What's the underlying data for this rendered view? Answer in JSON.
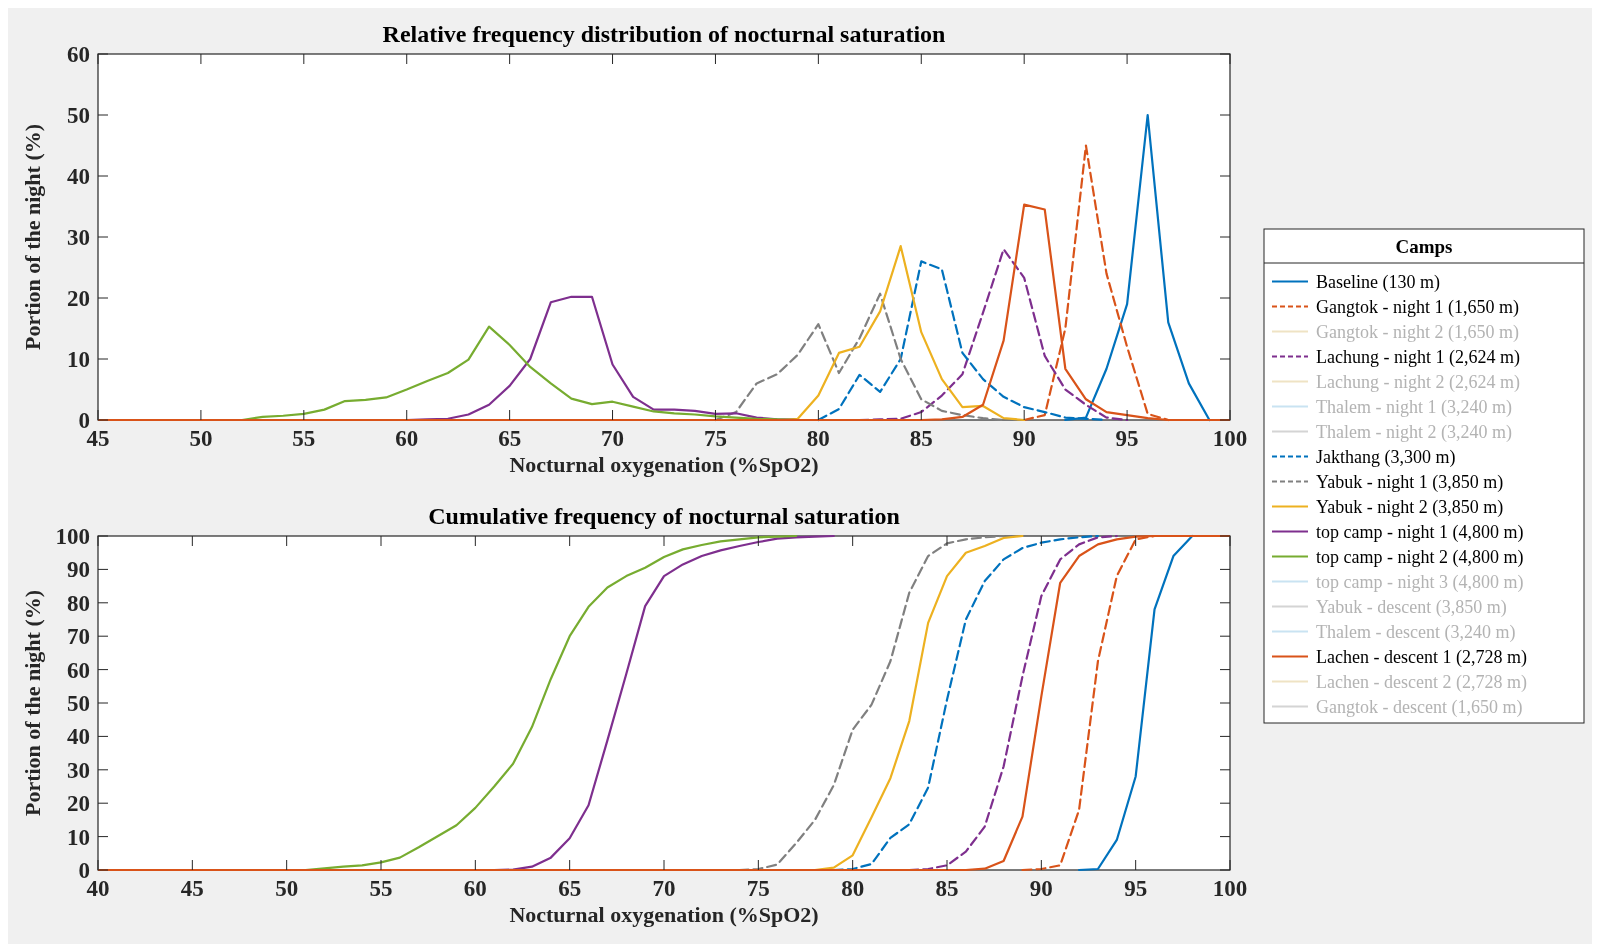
{
  "chart_data": [
    {
      "type": "line",
      "title": "Relative frequency distribution of nocturnal saturation",
      "xlabel": "Nocturnal oxygenation (%SpO2)",
      "ylabel": "Portion of the night (%)",
      "xlim": [
        45,
        100
      ],
      "ylim": [
        0,
        60
      ],
      "xticks": [
        45,
        50,
        55,
        60,
        65,
        70,
        75,
        80,
        85,
        90,
        95,
        100
      ],
      "yticks": [
        0,
        10,
        20,
        30,
        40,
        50,
        60
      ],
      "grid": false,
      "x": [
        45,
        46,
        47,
        48,
        49,
        50,
        51,
        52,
        53,
        54,
        55,
        56,
        57,
        58,
        59,
        60,
        61,
        62,
        63,
        64,
        65,
        66,
        67,
        68,
        69,
        70,
        71,
        72,
        73,
        74,
        75,
        76,
        77,
        78,
        79,
        80,
        81,
        82,
        83,
        84,
        85,
        86,
        87,
        88,
        89,
        90,
        91,
        92,
        93,
        94,
        95,
        96,
        97,
        98,
        99,
        100
      ],
      "series": [
        {
          "color": "#0072bd",
          "line_style": "solid",
          "values": [
            null,
            null,
            null,
            null,
            null,
            null,
            null,
            null,
            null,
            null,
            null,
            null,
            null,
            null,
            null,
            null,
            null,
            null,
            null,
            null,
            null,
            null,
            null,
            null,
            null,
            null,
            null,
            null,
            null,
            null,
            null,
            null,
            null,
            null,
            null,
            null,
            null,
            null,
            null,
            null,
            null,
            null,
            null,
            null,
            null,
            null,
            null,
            0,
            0.4,
            8.4,
            19,
            50,
            16,
            6,
            0,
            null
          ]
        },
        {
          "color": "#d95319",
          "line_style": "dashed",
          "values": [
            null,
            null,
            null,
            null,
            null,
            null,
            null,
            null,
            null,
            null,
            null,
            null,
            null,
            null,
            null,
            null,
            null,
            null,
            null,
            null,
            null,
            null,
            null,
            null,
            null,
            null,
            null,
            null,
            null,
            null,
            null,
            null,
            null,
            null,
            null,
            null,
            null,
            null,
            null,
            null,
            null,
            null,
            null,
            null,
            null,
            0,
            0.8,
            15,
            45,
            24,
            12,
            1,
            0,
            null,
            null,
            null
          ]
        },
        {
          "color": "#7e2f8e",
          "line_style": "dashed",
          "values": [
            null,
            null,
            null,
            null,
            null,
            null,
            null,
            null,
            null,
            null,
            null,
            null,
            null,
            null,
            null,
            null,
            null,
            null,
            null,
            null,
            null,
            null,
            null,
            null,
            null,
            null,
            null,
            null,
            null,
            null,
            null,
            null,
            null,
            null,
            null,
            null,
            null,
            0,
            0.1,
            0.2,
            1.3,
            4,
            7.5,
            17.6,
            28,
            23.3,
            10.5,
            5,
            2.5,
            0.4,
            0,
            null,
            null,
            null,
            null,
            null
          ]
        },
        {
          "color": "#0072bd",
          "line_style": "dashed",
          "values": [
            null,
            null,
            null,
            null,
            null,
            null,
            null,
            null,
            null,
            null,
            null,
            null,
            null,
            null,
            null,
            null,
            null,
            null,
            null,
            null,
            null,
            null,
            null,
            null,
            null,
            null,
            null,
            null,
            null,
            null,
            null,
            null,
            null,
            null,
            null,
            0,
            1.8,
            7.4,
            4.6,
            10,
            26,
            24.7,
            11,
            6.7,
            3.8,
            2.1,
            1.3,
            0.4,
            0.2,
            0,
            null,
            null,
            null,
            null,
            null,
            null
          ]
        },
        {
          "color": "#808080",
          "line_style": "dashed",
          "values": [
            null,
            null,
            null,
            null,
            null,
            null,
            null,
            null,
            null,
            null,
            null,
            null,
            null,
            null,
            null,
            null,
            null,
            null,
            null,
            null,
            null,
            null,
            null,
            null,
            null,
            null,
            null,
            null,
            null,
            null,
            0,
            1.3,
            6,
            7.5,
            10.7,
            15.7,
            7.7,
            13.4,
            20.7,
            10,
            3.4,
            1.5,
            0.8,
            0.3,
            0,
            null,
            null,
            null,
            null,
            null,
            null,
            null,
            null,
            null,
            null,
            null
          ]
        },
        {
          "color": "#edb120",
          "line_style": "solid",
          "values": [
            null,
            null,
            null,
            null,
            null,
            null,
            null,
            null,
            null,
            null,
            null,
            null,
            null,
            null,
            null,
            null,
            null,
            null,
            null,
            null,
            null,
            null,
            null,
            null,
            null,
            null,
            null,
            null,
            null,
            null,
            null,
            null,
            null,
            0,
            0.2,
            4,
            11,
            12,
            17.8,
            28.5,
            14.4,
            6.7,
            2.1,
            2.3,
            0.3,
            0,
            null,
            null,
            null,
            null,
            null,
            null,
            null,
            null,
            null,
            null
          ]
        },
        {
          "color": "#7e2f8e",
          "line_style": "solid",
          "values": [
            null,
            null,
            null,
            null,
            null,
            null,
            null,
            null,
            null,
            null,
            null,
            null,
            null,
            null,
            null,
            0,
            0.1,
            0.2,
            0.9,
            2.5,
            5.6,
            10,
            19.3,
            20.2,
            20.2,
            9.1,
            3.8,
            1.7,
            1.7,
            1.5,
            1,
            1.1,
            0.4,
            0.1,
            0,
            null,
            null,
            null,
            null,
            null,
            null,
            null,
            null,
            null,
            null,
            null,
            null,
            null,
            null,
            null,
            null,
            null,
            null,
            null,
            null,
            null
          ]
        },
        {
          "color": "#77ac30",
          "line_style": "solid",
          "values": [
            null,
            null,
            null,
            null,
            null,
            null,
            null,
            0,
            0.5,
            0.7,
            1,
            1.7,
            3.1,
            3.3,
            3.7,
            5,
            6.4,
            7.7,
            9.9,
            15.3,
            12.3,
            8.7,
            6,
            3.5,
            2.6,
            3,
            2.2,
            1.4,
            1.1,
            0.9,
            0.6,
            0.4,
            0.2,
            0.1,
            0,
            null,
            null,
            null,
            null,
            null,
            null,
            null,
            null,
            null,
            null,
            null,
            null,
            null,
            null,
            null,
            null,
            null,
            null,
            null,
            null,
            null
          ]
        },
        {
          "color": "#d95319",
          "line_style": "solid",
          "values": [
            0,
            0,
            0,
            0,
            0,
            0,
            0,
            0,
            0,
            0,
            0,
            0,
            0,
            0,
            0,
            0,
            0,
            0,
            0,
            0,
            0,
            0,
            0,
            0,
            0,
            0,
            0,
            0,
            0,
            0,
            0,
            0,
            0,
            0,
            0,
            0,
            0,
            0,
            0,
            0,
            0,
            0.1,
            0.5,
            2.5,
            13,
            35.3,
            34.5,
            8.4,
            3.4,
            1.3,
            0.8,
            0.3,
            0,
            0,
            0,
            0
          ]
        }
      ]
    },
    {
      "type": "line",
      "title": "Cumulative frequency of nocturnal saturation",
      "xlabel": "Nocturnal oxygenation (%SpO2)",
      "ylabel": "Portion of the night (%)",
      "xlim": [
        40,
        100
      ],
      "ylim": [
        0,
        100
      ],
      "xticks": [
        40,
        45,
        50,
        55,
        60,
        65,
        70,
        75,
        80,
        85,
        90,
        95,
        100
      ],
      "yticks": [
        0,
        10,
        20,
        30,
        40,
        50,
        60,
        70,
        80,
        90,
        100
      ],
      "grid": false,
      "legend": "right",
      "legend_title": "Camps",
      "x": [
        40,
        41,
        42,
        43,
        44,
        45,
        46,
        47,
        48,
        49,
        50,
        51,
        52,
        53,
        54,
        55,
        56,
        57,
        58,
        59,
        60,
        61,
        62,
        63,
        64,
        65,
        66,
        67,
        68,
        69,
        70,
        71,
        72,
        73,
        74,
        75,
        76,
        77,
        78,
        79,
        80,
        81,
        82,
        83,
        84,
        85,
        86,
        87,
        88,
        89,
        90,
        91,
        92,
        93,
        94,
        95,
        96,
        97,
        98,
        99,
        100
      ],
      "series": [
        {
          "name": "Baseline (130 m)",
          "color": "#0072bd",
          "line_style": "solid",
          "values": [
            null,
            null,
            null,
            null,
            null,
            null,
            null,
            null,
            null,
            null,
            null,
            null,
            null,
            null,
            null,
            null,
            null,
            null,
            null,
            null,
            null,
            null,
            null,
            null,
            null,
            null,
            null,
            null,
            null,
            null,
            null,
            null,
            null,
            null,
            null,
            null,
            null,
            null,
            null,
            null,
            null,
            null,
            null,
            null,
            null,
            null,
            null,
            null,
            null,
            null,
            null,
            null,
            0,
            0.3,
            9,
            28,
            78,
            94,
            100,
            null,
            null
          ]
        },
        {
          "name": "Gangtok - night 1 (1,650 m)",
          "color": "#d95319",
          "line_style": "dashed",
          "values": [
            null,
            null,
            null,
            null,
            null,
            null,
            null,
            null,
            null,
            null,
            null,
            null,
            null,
            null,
            null,
            null,
            null,
            null,
            null,
            null,
            null,
            null,
            null,
            null,
            null,
            null,
            null,
            null,
            null,
            null,
            null,
            null,
            null,
            null,
            null,
            null,
            null,
            null,
            null,
            null,
            null,
            null,
            null,
            null,
            null,
            null,
            null,
            null,
            null,
            0,
            0.3,
            1.4,
            18,
            62.5,
            88,
            99,
            100,
            null,
            null,
            null,
            null
          ]
        },
        {
          "name": "Gangtok - night 2 (1,650 m)",
          "color": "#efe3c4",
          "line_style": "solid",
          "values": [
            null,
            null,
            null,
            null,
            null,
            null,
            null,
            null,
            null,
            null,
            null,
            null,
            null,
            null,
            null,
            null,
            null,
            null,
            null,
            null,
            null,
            null,
            null,
            null,
            null,
            null,
            null,
            null,
            null,
            null,
            null,
            null,
            null,
            null,
            null,
            null,
            null,
            null,
            null,
            null,
            null,
            null,
            null,
            null,
            null,
            null,
            null,
            null,
            null,
            null,
            null,
            null,
            null,
            null,
            null,
            null,
            null,
            null,
            null,
            null,
            null
          ]
        },
        {
          "name": "Lachung - night 1 (2,624 m)",
          "color": "#7e2f8e",
          "line_style": "dashed",
          "values": [
            null,
            null,
            null,
            null,
            null,
            null,
            null,
            null,
            null,
            null,
            null,
            null,
            null,
            null,
            null,
            null,
            null,
            null,
            null,
            null,
            null,
            null,
            null,
            null,
            null,
            null,
            null,
            null,
            null,
            null,
            null,
            null,
            null,
            null,
            null,
            null,
            null,
            null,
            null,
            null,
            null,
            null,
            null,
            0,
            0.3,
            1.4,
            5.5,
            13,
            31,
            58,
            82,
            93,
            97.5,
            99.6,
            100,
            null,
            null,
            null,
            null,
            null,
            null
          ]
        },
        {
          "name": "Lachung - night 2 (2,624 m)",
          "color": "#efe3c4",
          "line_style": "solid",
          "values": [
            null,
            null,
            null,
            null,
            null,
            null,
            null,
            null,
            null,
            null,
            null,
            null,
            null,
            null,
            null,
            null,
            null,
            null,
            null,
            null,
            null,
            null,
            null,
            null,
            null,
            null,
            null,
            null,
            null,
            null,
            null,
            null,
            null,
            null,
            null,
            null,
            null,
            null,
            null,
            null,
            null,
            null,
            null,
            null,
            null,
            null,
            null,
            null,
            null,
            null,
            null,
            null,
            null,
            null,
            null,
            null,
            null,
            null,
            null,
            null,
            null
          ]
        },
        {
          "name": "Thalem - night 1 (3,240 m)",
          "color": "#c9e3f2",
          "line_style": "solid",
          "values": [
            null,
            null,
            null,
            null,
            null,
            null,
            null,
            null,
            null,
            null,
            null,
            null,
            null,
            null,
            null,
            null,
            null,
            null,
            null,
            null,
            null,
            null,
            null,
            null,
            null,
            null,
            null,
            null,
            null,
            null,
            null,
            null,
            null,
            null,
            null,
            null,
            null,
            null,
            null,
            null,
            null,
            null,
            null,
            null,
            null,
            null,
            null,
            null,
            null,
            null,
            null,
            null,
            null,
            null,
            null,
            null,
            null,
            null,
            null,
            null,
            null
          ]
        },
        {
          "name": "Thalem - night 2 (3,240 m)",
          "color": "#d4d4d4",
          "line_style": "solid",
          "values": [
            null,
            null,
            null,
            null,
            null,
            null,
            null,
            null,
            null,
            null,
            null,
            null,
            null,
            null,
            null,
            null,
            null,
            null,
            null,
            null,
            null,
            null,
            null,
            null,
            null,
            null,
            null,
            null,
            null,
            null,
            null,
            null,
            null,
            null,
            null,
            null,
            null,
            null,
            null,
            null,
            null,
            null,
            null,
            null,
            null,
            null,
            null,
            null,
            null,
            null,
            null,
            null,
            null,
            null,
            null,
            null,
            null,
            null,
            null,
            null,
            null
          ]
        },
        {
          "name": "Jakthang (3,300 m)",
          "color": "#0072bd",
          "line_style": "dashed",
          "values": [
            null,
            null,
            null,
            null,
            null,
            null,
            null,
            null,
            null,
            null,
            null,
            null,
            null,
            null,
            null,
            null,
            null,
            null,
            null,
            null,
            null,
            null,
            null,
            null,
            null,
            null,
            null,
            null,
            null,
            null,
            null,
            null,
            null,
            null,
            null,
            null,
            null,
            null,
            null,
            0,
            0.3,
            1.8,
            9.6,
            13.7,
            24.7,
            51,
            75,
            86.5,
            93,
            96.4,
            98,
            99,
            99.6,
            100,
            null,
            null,
            null,
            null,
            null,
            null,
            null
          ]
        },
        {
          "name": "Yabuk - night 1 (3,850 m)",
          "color": "#808080",
          "line_style": "dashed",
          "values": [
            null,
            null,
            null,
            null,
            null,
            null,
            null,
            null,
            null,
            null,
            null,
            null,
            null,
            null,
            null,
            null,
            null,
            null,
            null,
            null,
            null,
            null,
            null,
            null,
            null,
            null,
            null,
            null,
            null,
            null,
            null,
            null,
            null,
            null,
            0,
            0.3,
            1.6,
            8,
            15,
            25.4,
            42,
            49.5,
            62.5,
            83,
            94,
            97.8,
            99,
            99.6,
            100,
            null,
            null,
            null,
            null,
            null,
            null,
            null,
            null,
            null,
            null,
            null,
            null
          ]
        },
        {
          "name": "Yabuk - night 2 (3,850 m)",
          "color": "#edb120",
          "line_style": "solid",
          "values": [
            null,
            null,
            null,
            null,
            null,
            null,
            null,
            null,
            null,
            null,
            null,
            null,
            null,
            null,
            null,
            null,
            null,
            null,
            null,
            null,
            null,
            null,
            null,
            null,
            null,
            null,
            null,
            null,
            null,
            null,
            null,
            null,
            null,
            null,
            null,
            null,
            null,
            null,
            0,
            0.7,
            4.4,
            15.8,
            27.5,
            44.6,
            74,
            88,
            95,
            97,
            99.4,
            100,
            null,
            null,
            null,
            null,
            null,
            null,
            null,
            null,
            null,
            null,
            null
          ]
        },
        {
          "name": "top camp - night 1 (4,800 m)",
          "color": "#7e2f8e",
          "line_style": "solid",
          "values": [
            null,
            null,
            null,
            null,
            null,
            null,
            null,
            null,
            null,
            null,
            null,
            null,
            null,
            null,
            null,
            null,
            null,
            null,
            null,
            null,
            null,
            0,
            0.1,
            1,
            3.7,
            9.5,
            19.4,
            38.8,
            58.7,
            79,
            88,
            91.5,
            94,
            95.7,
            97,
            98.2,
            99.2,
            99.6,
            99.8,
            100,
            null,
            null,
            null,
            null,
            null,
            null,
            null,
            null,
            null,
            null,
            null,
            null,
            null,
            null,
            null,
            null,
            null,
            null,
            null,
            null,
            null
          ]
        },
        {
          "name": "top camp - night 2 (4,800 m)",
          "color": "#77ac30",
          "line_style": "solid",
          "values": [
            null,
            null,
            null,
            null,
            null,
            null,
            null,
            null,
            null,
            null,
            null,
            0,
            0.5,
            1,
            1.4,
            2.3,
            3.7,
            6.8,
            10.1,
            13.4,
            18.6,
            25,
            31.8,
            42.8,
            57.2,
            70,
            78.8,
            84.6,
            88,
            90.5,
            93.7,
            96,
            97.3,
            98.4,
            99,
            99.6,
            99.8,
            100,
            null,
            null,
            null,
            null,
            null,
            null,
            null,
            null,
            null,
            null,
            null,
            null,
            null,
            null,
            null,
            null,
            null,
            null,
            null,
            null,
            null,
            null,
            null
          ]
        },
        {
          "name": "top camp - night 3 (4,800 m)",
          "color": "#c9e3f2",
          "line_style": "solid",
          "values": [
            null,
            null,
            null,
            null,
            null,
            null,
            null,
            null,
            null,
            null,
            null,
            null,
            null,
            null,
            null,
            null,
            null,
            null,
            null,
            null,
            null,
            null,
            null,
            null,
            null,
            null,
            null,
            null,
            null,
            null,
            null,
            null,
            null,
            null,
            null,
            null,
            null,
            null,
            null,
            null,
            null,
            null,
            null,
            null,
            null,
            null,
            null,
            null,
            null,
            null,
            null,
            null,
            null,
            null,
            null,
            null,
            null,
            null,
            null,
            null,
            null
          ]
        },
        {
          "name": "Yabuk - descent (3,850 m)",
          "color": "#d4d4d4",
          "line_style": "solid",
          "values": [
            null,
            null,
            null,
            null,
            null,
            null,
            null,
            null,
            null,
            null,
            null,
            null,
            null,
            null,
            null,
            null,
            null,
            null,
            null,
            null,
            null,
            null,
            null,
            null,
            null,
            null,
            null,
            null,
            null,
            null,
            null,
            null,
            null,
            null,
            null,
            null,
            null,
            null,
            null,
            null,
            null,
            null,
            null,
            null,
            null,
            null,
            null,
            null,
            null,
            null,
            null,
            null,
            null,
            null,
            null,
            null,
            null,
            null,
            null,
            null,
            null
          ]
        },
        {
          "name": "Thalem - descent (3,240 m)",
          "color": "#c9e3f2",
          "line_style": "solid",
          "values": [
            null,
            null,
            null,
            null,
            null,
            null,
            null,
            null,
            null,
            null,
            null,
            null,
            null,
            null,
            null,
            null,
            null,
            null,
            null,
            null,
            null,
            null,
            null,
            null,
            null,
            null,
            null,
            null,
            null,
            null,
            null,
            null,
            null,
            null,
            null,
            null,
            null,
            null,
            null,
            null,
            null,
            null,
            null,
            null,
            null,
            null,
            null,
            null,
            null,
            null,
            null,
            null,
            null,
            null,
            null,
            null,
            null,
            null,
            null,
            null,
            null
          ]
        },
        {
          "name": "Lachen - descent 1 (2,728 m)",
          "color": "#d95319",
          "line_style": "solid",
          "values": [
            0,
            0,
            0,
            0,
            0,
            0,
            0,
            0,
            0,
            0,
            0,
            0,
            0,
            0,
            0,
            0,
            0,
            0,
            0,
            0,
            0,
            0,
            0,
            0,
            0,
            0,
            0,
            0,
            0,
            0,
            0,
            0,
            0,
            0,
            0,
            0,
            0,
            0,
            0,
            0,
            0,
            0,
            0,
            0,
            0,
            0,
            0,
            0.4,
            2.7,
            16,
            52,
            86,
            94,
            97.5,
            99,
            99.8,
            100,
            100,
            100,
            100,
            100
          ]
        },
        {
          "name": "Lachen - descent 2 (2,728 m)",
          "color": "#efe3c4",
          "line_style": "solid",
          "values": [
            null,
            null,
            null,
            null,
            null,
            null,
            null,
            null,
            null,
            null,
            null,
            null,
            null,
            null,
            null,
            null,
            null,
            null,
            null,
            null,
            null,
            null,
            null,
            null,
            null,
            null,
            null,
            null,
            null,
            null,
            null,
            null,
            null,
            null,
            null,
            null,
            null,
            null,
            null,
            null,
            null,
            null,
            null,
            null,
            null,
            null,
            null,
            null,
            null,
            null,
            null,
            null,
            null,
            null,
            null,
            null,
            null,
            null,
            null,
            null,
            null
          ]
        },
        {
          "name": "Gangtok - descent (1,650 m)",
          "color": "#d4d4d4",
          "line_style": "solid",
          "values": [
            null,
            null,
            null,
            null,
            null,
            null,
            null,
            null,
            null,
            null,
            null,
            null,
            null,
            null,
            null,
            null,
            null,
            null,
            null,
            null,
            null,
            null,
            null,
            null,
            null,
            null,
            null,
            null,
            null,
            null,
            null,
            null,
            null,
            null,
            null,
            null,
            null,
            null,
            null,
            null,
            null,
            null,
            null,
            null,
            null,
            null,
            null,
            null,
            null,
            null,
            null,
            null,
            null,
            null,
            null,
            null,
            null,
            null,
            null,
            null,
            null
          ]
        }
      ]
    }
  ]
}
